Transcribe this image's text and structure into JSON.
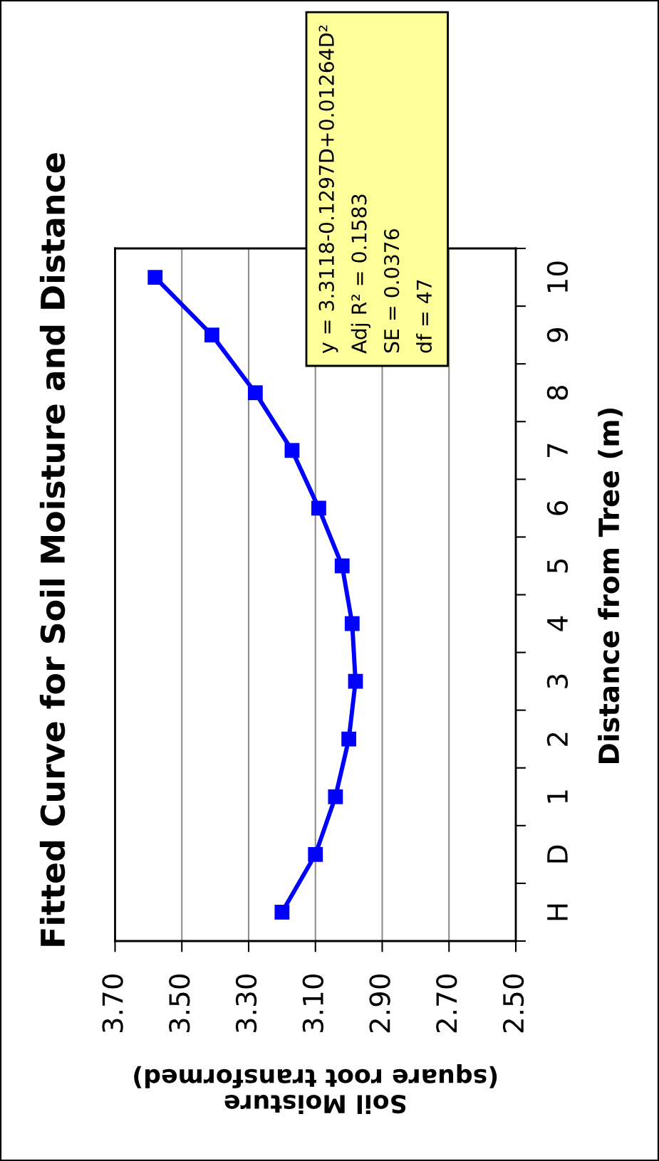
{
  "chart_data": {
    "type": "line",
    "title": "Fitted Curve for Soil Moisture and Distance",
    "xlabel": "Soil Moisture\n(square root transformed)",
    "ylabel": "Distance from Tree (m)",
    "orientation": "horizontal",
    "categories": [
      "10",
      "9",
      "8",
      "7",
      "6",
      "5",
      "4",
      "3",
      "2",
      "1",
      "D",
      "H"
    ],
    "series": [
      {
        "color": "#0000ff",
        "values": [
          3.58,
          3.41,
          3.28,
          3.17,
          3.09,
          3.02,
          2.99,
          2.98,
          3.0,
          3.04,
          3.1,
          3.2
        ]
      }
    ],
    "xlim": [
      3.7,
      2.5
    ],
    "xticks": [
      {
        "value": 3.7,
        "label": "3.70"
      },
      {
        "value": 3.5,
        "label": "3.50"
      },
      {
        "value": 3.3,
        "label": "3.30"
      },
      {
        "value": 3.1,
        "label": "3.10"
      },
      {
        "value": 2.9,
        "label": "2.90"
      },
      {
        "value": 2.7,
        "label": "2.70"
      },
      {
        "value": 2.5,
        "label": "2.50"
      }
    ],
    "grid": "x",
    "marker": "square",
    "line_style": "solid",
    "annotations": [
      "y = 3.3118-0.1297D+0.01264D²",
      "Adj R² = 0.1583",
      "SE = 0.0376",
      "df = 47"
    ]
  }
}
